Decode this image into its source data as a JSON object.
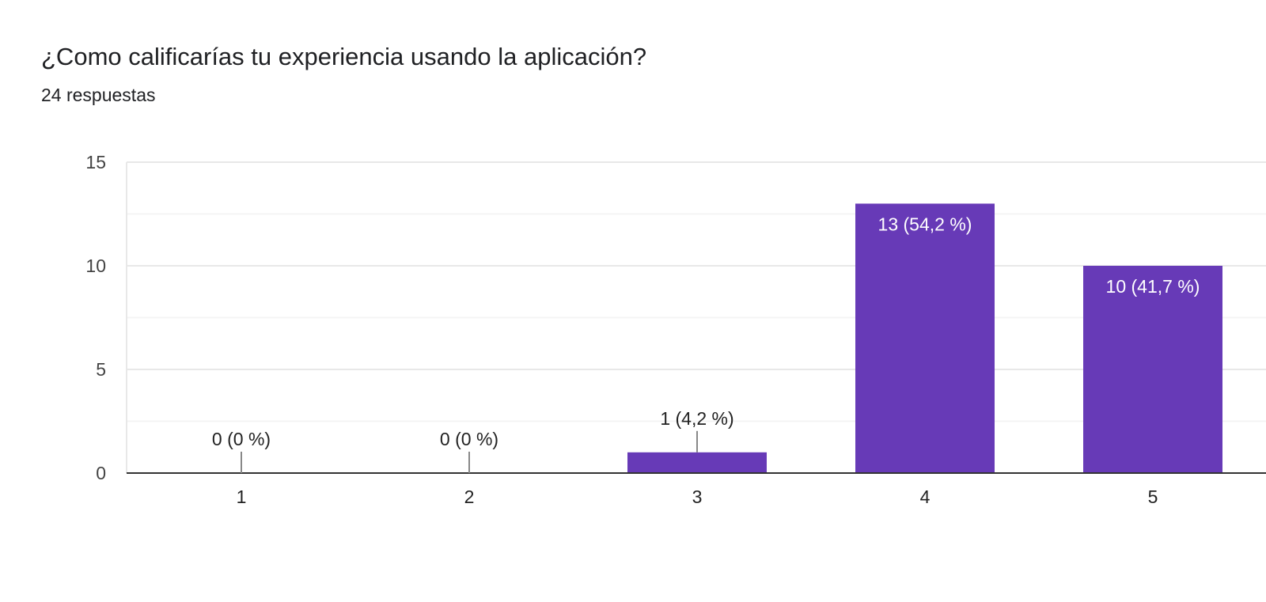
{
  "header": {
    "title": "¿Como calificarías tu experiencia usando la aplicación?",
    "responses": "24 respuestas"
  },
  "colors": {
    "bar": "#673ab7",
    "grid": "#eeeeee",
    "axis": "#333333"
  },
  "chart_data": {
    "type": "bar",
    "title": "¿Como calificarías tu experiencia usando la aplicación?",
    "subtitle": "24 respuestas",
    "categories": [
      "1",
      "2",
      "3",
      "4",
      "5"
    ],
    "values": [
      0,
      0,
      1,
      13,
      10
    ],
    "data_labels": [
      "0 (0 %)",
      "0 (0 %)",
      "1 (4,2 %)",
      "13 (54,2 %)",
      "10 (41,7 %)"
    ],
    "y_ticks": [
      "0",
      "5",
      "10",
      "15"
    ],
    "ylim": [
      0,
      15
    ],
    "xlabel": "",
    "ylabel": "",
    "grid": true,
    "legend": "none"
  }
}
